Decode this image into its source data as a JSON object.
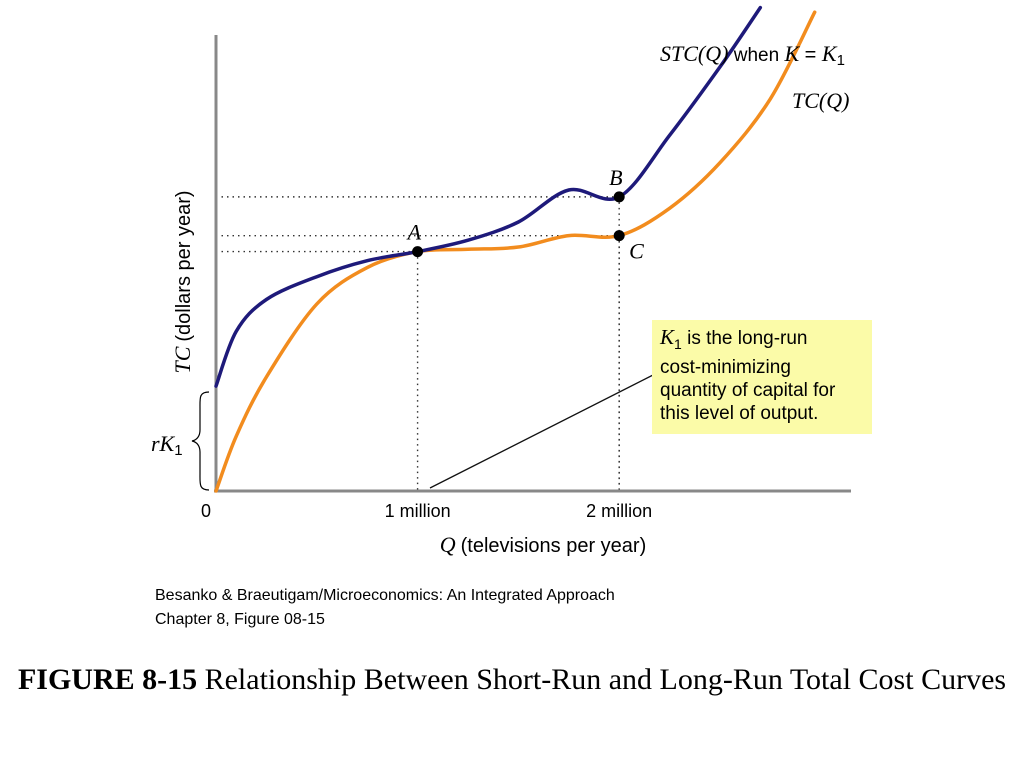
{
  "chart_data": {
    "type": "line",
    "title": "",
    "xlabel": {
      "symbol": "Q",
      "text": "(televisions per year)"
    },
    "ylabel": {
      "symbol": "TC",
      "text": "(dollars per year)"
    },
    "x_ticks": [
      {
        "value": 0,
        "label": "0"
      },
      {
        "value": 1,
        "label": "1 million"
      },
      {
        "value": 2,
        "label": "2 million"
      }
    ],
    "xlim": [
      0,
      3.15
    ],
    "ylim": [
      0,
      100
    ],
    "grid": false,
    "series": [
      {
        "name": "STC(Q) when K = K1",
        "label_parts": {
          "lhs": "STC(Q)",
          "mid": " when ",
          "rhs_sym": "K",
          "eq": " = ",
          "rhs_k": "K",
          "sub": "1"
        },
        "color": "#1e1a7a",
        "x": [
          0,
          0.1,
          0.25,
          0.5,
          0.75,
          1,
          1.25,
          1.5,
          1.75,
          2,
          2.25,
          2.5,
          2.7
        ],
        "y": [
          23,
          35,
          42,
          47,
          50.5,
          52.5,
          55,
          59,
          66,
          64.5,
          78,
          93,
          106
        ]
      },
      {
        "name": "TC(Q)",
        "label_parts": {
          "lhs": "TC(Q)"
        },
        "color": "#f28c1e",
        "x": [
          0,
          0.1,
          0.25,
          0.5,
          0.75,
          1,
          1.25,
          1.5,
          1.75,
          2,
          2.25,
          2.5,
          2.75,
          2.97
        ],
        "y": [
          0,
          12,
          25,
          41,
          49,
          52.5,
          53,
          53.5,
          56,
          56,
          62,
          72,
          86,
          105
        ]
      }
    ],
    "points": [
      {
        "label": "A",
        "x": 1,
        "y": 52.5,
        "label_pos": "above"
      },
      {
        "label": "B",
        "x": 2,
        "y": 64.5,
        "label_pos": "above"
      },
      {
        "label": "C",
        "x": 2,
        "y": 56,
        "label_pos": "below-right"
      }
    ],
    "brace": {
      "label_sym": "rK",
      "sub": "1",
      "y_from": 0,
      "y_to": 22
    }
  },
  "callout": {
    "sym": "K",
    "sub": "1",
    "line1_rest": " is the long-run",
    "line2": "cost-minimizing",
    "line3": "quantity of capital for",
    "line4": "this level of output."
  },
  "credit": {
    "line1": "Besanko & Braeutigam/Microeconomics: An Integrated Approach",
    "line2": "Chapter 8, Figure 08-15"
  },
  "caption": {
    "bold": "FIGURE 8-15",
    "text": " Relationship Between Short-Run and Long-Run Total Cost Curves"
  }
}
